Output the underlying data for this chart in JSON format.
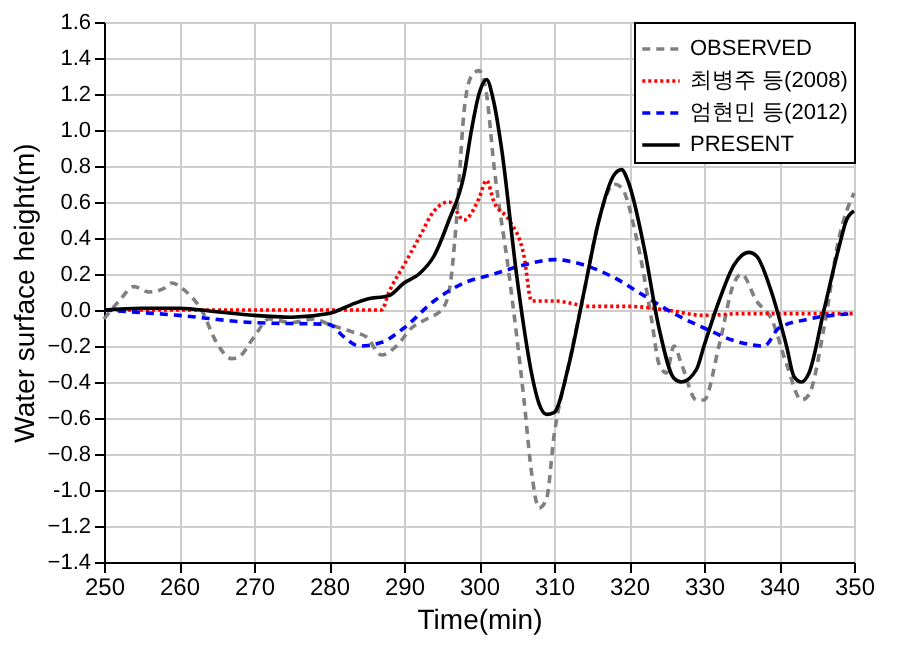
{
  "chart_data": {
    "type": "line",
    "xlabel": "Time(min)",
    "ylabel": "Water surface height(m)",
    "xlim": [
      250,
      350
    ],
    "xticks": [
      250,
      260,
      270,
      280,
      290,
      300,
      310,
      320,
      330,
      340,
      350
    ],
    "ylim": [
      -1.4,
      1.6
    ],
    "yticks": [
      -1.4,
      -1.2,
      {
        "value": -1.0,
        "label": "-1.0"
      },
      -0.8,
      -0.6,
      -0.4,
      -0.2,
      {
        "value": 0,
        "label": "0.0"
      },
      0.2,
      0.4,
      0.6,
      0.8,
      {
        "value": 1.0,
        "label": "1.0"
      },
      1.2,
      1.4,
      1.6
    ],
    "grid": true,
    "legend": "top right",
    "series": [
      {
        "name": "OBSERVED",
        "color": "#808080",
        "line_style": "dashed",
        "x": [
          250,
          252,
          254,
          256,
          258,
          259,
          261,
          263,
          265,
          267,
          268,
          270,
          272,
          275,
          278,
          280,
          283,
          285,
          287,
          289,
          291,
          293,
          295,
          296,
          297,
          298,
          299,
          300,
          301,
          302,
          304,
          306,
          307,
          308,
          309,
          310,
          312,
          314,
          316,
          318,
          319,
          321,
          323,
          324,
          325,
          326,
          327,
          329,
          330,
          332,
          334,
          335,
          337,
          339,
          341,
          343,
          344,
          346,
          348,
          350
        ],
        "values": [
          -0.05,
          0.05,
          0.13,
          0.1,
          0.12,
          0.15,
          0.1,
          0.0,
          -0.18,
          -0.27,
          -0.26,
          -0.15,
          -0.05,
          -0.07,
          -0.05,
          -0.08,
          -0.12,
          -0.15,
          -0.25,
          -0.2,
          -0.1,
          -0.05,
          0.0,
          0.1,
          0.5,
          1.1,
          1.3,
          1.33,
          1.2,
          0.8,
          0.2,
          -0.5,
          -0.9,
          -1.1,
          -1.05,
          -0.7,
          -0.3,
          0.1,
          0.5,
          0.7,
          0.68,
          0.4,
          -0.05,
          -0.3,
          -0.35,
          -0.2,
          -0.3,
          -0.5,
          -0.5,
          -0.2,
          0.15,
          0.2,
          0.05,
          -0.05,
          -0.3,
          -0.5,
          -0.47,
          -0.1,
          0.4,
          0.65
        ]
      },
      {
        "name": "최병주 등(2008)",
        "color": "#ff0000",
        "line_style": "dotted",
        "x": [
          250,
          280,
          287,
          288,
          290,
          292,
          294,
          296,
          298,
          300,
          301,
          302,
          304,
          306,
          307,
          308,
          310,
          315,
          320,
          325,
          330,
          335,
          340,
          350
        ],
        "values": [
          0,
          0,
          0.0,
          0.1,
          0.25,
          0.4,
          0.55,
          0.6,
          0.5,
          0.62,
          0.72,
          0.6,
          0.5,
          0.3,
          0.05,
          0.05,
          0.05,
          0.02,
          0.02,
          0.0,
          -0.03,
          -0.02,
          -0.02,
          -0.02
        ]
      },
      {
        "name": "엄현민 등(2012)",
        "color": "#0000ff",
        "line_style": "dashed",
        "x": [
          250,
          260,
          270,
          280,
          282,
          284,
          287,
          290,
          294,
          298,
          302,
          306,
          310,
          314,
          318,
          322,
          326,
          330,
          334,
          338,
          340,
          344,
          350
        ],
        "values": [
          0,
          -0.03,
          -0.07,
          -0.08,
          -0.15,
          -0.2,
          -0.18,
          -0.1,
          0.05,
          0.15,
          0.2,
          0.25,
          0.28,
          0.25,
          0.18,
          0.08,
          -0.02,
          -0.1,
          -0.17,
          -0.2,
          -0.1,
          -0.05,
          -0.02
        ]
      },
      {
        "name": "PRESENT",
        "color": "#000000",
        "line_style": "solid",
        "x": [
          250,
          255,
          260,
          265,
          270,
          275,
          280,
          283,
          285,
          288,
          290,
          292,
          294,
          296,
          298,
          299,
          300,
          301,
          302,
          303,
          305,
          306,
          307,
          308,
          309,
          310,
          312,
          314,
          316,
          318,
          319,
          320,
          322,
          324,
          326,
          327,
          329,
          330,
          332,
          334,
          336,
          337,
          339,
          341,
          342,
          343,
          344,
          346,
          348,
          349,
          350
        ],
        "values": [
          0,
          0.01,
          0.01,
          -0.01,
          -0.03,
          -0.04,
          -0.02,
          0.03,
          0.06,
          0.08,
          0.15,
          0.2,
          0.3,
          0.5,
          0.75,
          1.0,
          1.2,
          1.28,
          1.15,
          0.9,
          0.2,
          -0.1,
          -0.35,
          -0.52,
          -0.58,
          -0.57,
          -0.3,
          0.1,
          0.5,
          0.75,
          0.78,
          0.7,
          0.35,
          -0.1,
          -0.38,
          -0.4,
          -0.33,
          -0.2,
          0.05,
          0.25,
          0.32,
          0.3,
          0.1,
          -0.2,
          -0.37,
          -0.4,
          -0.35,
          0.0,
          0.35,
          0.5,
          0.55
        ]
      }
    ]
  }
}
